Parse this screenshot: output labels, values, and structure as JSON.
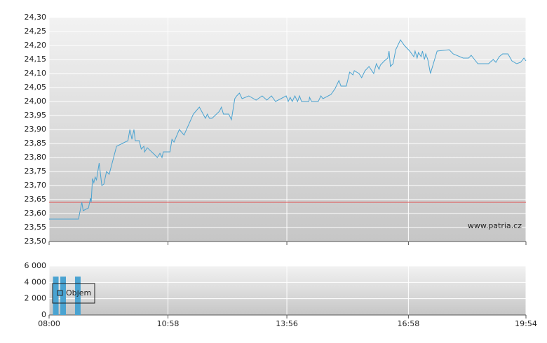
{
  "chart_data": [
    {
      "type": "line",
      "color": "#4aa3d1",
      "source": "www.patria.cz",
      "reference_line": {
        "value": 23.64,
        "color": "#e05050"
      },
      "xlim": [
        "08:00",
        "19:54"
      ],
      "ylim": [
        23.5,
        24.3
      ],
      "yticks": [
        {
          "value": 23.5,
          "label": "23,50"
        },
        {
          "value": 23.55,
          "label": "23,55"
        },
        {
          "value": 23.6,
          "label": "23,60"
        },
        {
          "value": 23.65,
          "label": "23,65"
        },
        {
          "value": 23.7,
          "label": "23,70"
        },
        {
          "value": 23.75,
          "label": "23,75"
        },
        {
          "value": 23.8,
          "label": "23,80"
        },
        {
          "value": 23.85,
          "label": "23,85"
        },
        {
          "value": 23.9,
          "label": "23,90"
        },
        {
          "value": 23.95,
          "label": "23,95"
        },
        {
          "value": 24.0,
          "label": "24,00"
        },
        {
          "value": 24.05,
          "label": "24,05"
        },
        {
          "value": 24.1,
          "label": "24,10"
        },
        {
          "value": 24.15,
          "label": "24,15"
        },
        {
          "value": 24.2,
          "label": "24,20"
        },
        {
          "value": 24.25,
          "label": "24,25"
        },
        {
          "value": 24.3,
          "label": "24,30"
        }
      ],
      "grid": true,
      "x": [
        "08:00",
        "08:44",
        "08:49",
        "08:51",
        "08:59",
        "09:02",
        "09:03",
        "09:05",
        "09:07",
        "09:09",
        "09:11",
        "09:15",
        "09:19",
        "09:22",
        "09:26",
        "09:30",
        "09:41",
        "09:58",
        "10:01",
        "10:04",
        "10:07",
        "10:09",
        "10:15",
        "10:18",
        "10:22",
        "10:23",
        "10:27",
        "10:38",
        "10:42",
        "10:46",
        "10:49",
        "10:51",
        "11:01",
        "11:04",
        "11:07",
        "11:15",
        "11:22",
        "11:36",
        "11:45",
        "11:54",
        "11:57",
        "12:00",
        "12:04",
        "12:15",
        "12:18",
        "12:21",
        "12:29",
        "12:33",
        "12:38",
        "12:41",
        "12:45",
        "12:49",
        "12:59",
        "13:10",
        "13:19",
        "13:26",
        "13:33",
        "13:39",
        "13:55",
        "13:58",
        "14:01",
        "14:04",
        "14:08",
        "14:12",
        "14:15",
        "14:18",
        "14:29",
        "14:30",
        "14:33",
        "14:43",
        "14:47",
        "14:50",
        "15:02",
        "15:08",
        "15:14",
        "15:17",
        "15:25",
        "15:30",
        "15:35",
        "15:37",
        "15:44",
        "15:48",
        "15:53",
        "15:59",
        "16:06",
        "16:10",
        "16:14",
        "16:16",
        "16:22",
        "16:27",
        "16:29",
        "16:31",
        "16:35",
        "16:39",
        "16:46",
        "16:52",
        "17:00",
        "17:06",
        "17:08",
        "17:11",
        "17:13",
        "17:17",
        "17:19",
        "17:22",
        "17:24",
        "17:27",
        "17:31",
        "17:41",
        "17:59",
        "18:05",
        "18:20",
        "18:28",
        "18:32",
        "18:42",
        "18:58",
        "19:05",
        "19:09",
        "19:14",
        "19:19",
        "19:27",
        "19:33",
        "19:40",
        "19:46",
        "19:51",
        "19:54"
      ],
      "values": [
        23.58,
        23.58,
        23.64,
        23.61,
        23.62,
        23.655,
        23.64,
        23.725,
        23.71,
        23.73,
        23.72,
        23.78,
        23.7,
        23.705,
        23.75,
        23.74,
        23.84,
        23.86,
        23.9,
        23.865,
        23.9,
        23.86,
        23.86,
        23.83,
        23.84,
        23.82,
        23.835,
        23.81,
        23.8,
        23.815,
        23.8,
        23.82,
        23.82,
        23.865,
        23.855,
        23.9,
        23.88,
        23.955,
        23.98,
        23.94,
        23.955,
        23.94,
        23.94,
        23.965,
        23.98,
        23.955,
        23.955,
        23.935,
        24.01,
        24.02,
        24.03,
        24.01,
        24.02,
        24.005,
        24.02,
        24.005,
        24.02,
        24.0,
        24.02,
        24.0,
        24.015,
        24.0,
        24.02,
        24.0,
        24.02,
        24.0,
        24.0,
        24.015,
        24.0,
        24.0,
        24.02,
        24.01,
        24.025,
        24.045,
        24.075,
        24.055,
        24.055,
        24.105,
        24.095,
        24.11,
        24.1,
        24.085,
        24.11,
        24.125,
        24.1,
        24.135,
        24.115,
        24.13,
        24.145,
        24.155,
        24.18,
        24.125,
        24.135,
        24.185,
        24.22,
        24.2,
        24.18,
        24.16,
        24.18,
        24.155,
        24.175,
        24.16,
        24.18,
        24.15,
        24.17,
        24.15,
        24.1,
        24.18,
        24.185,
        24.17,
        24.155,
        24.155,
        24.165,
        24.135,
        24.135,
        24.15,
        24.14,
        24.16,
        24.17,
        24.17,
        24.145,
        24.135,
        24.14,
        24.155,
        24.145
      ]
    },
    {
      "type": "bar",
      "xlim": [
        "08:00",
        "19:54"
      ],
      "xticks": [
        "08:00",
        "10:58",
        "13:56",
        "16:58",
        "19:54"
      ],
      "ylim": [
        0,
        6000
      ],
      "yticks": [
        {
          "value": 0,
          "label": "0"
        },
        {
          "value": 2000,
          "label": "2 000"
        },
        {
          "value": 4000,
          "label": "4 000"
        },
        {
          "value": 6000,
          "label": "6 000"
        }
      ],
      "grid": true,
      "legend": "upper left",
      "x": [
        "08:10",
        "08:21",
        "08:43"
      ],
      "series": [
        {
          "name": "Objem",
          "color": "#4aa3d1",
          "values": [
            4700,
            4700,
            4700
          ]
        }
      ]
    }
  ]
}
